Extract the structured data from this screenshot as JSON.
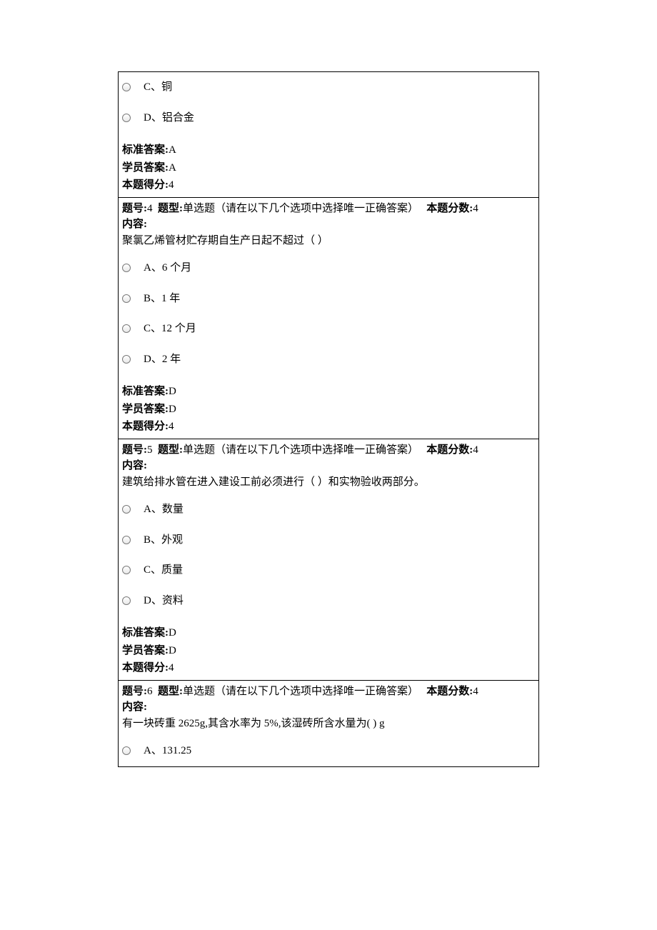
{
  "labels": {
    "question_num": "题号:",
    "question_type": "题型:",
    "type_text": "单选题（请在以下几个选项中选择唯一正确答案）",
    "score_label": "本题分数:",
    "content_label": "内容:",
    "standard_answer": "标准答案:",
    "student_answer": "学员答案:",
    "points_earned": "本题得分:"
  },
  "q3_partial": {
    "options": [
      {
        "key": "C",
        "text": "C、铜"
      },
      {
        "key": "D",
        "text": "D、铝合金"
      }
    ],
    "standard_answer": "A",
    "student_answer": "A",
    "points": "4"
  },
  "q4": {
    "number": "4",
    "score": "4",
    "text": "聚氯乙烯管材贮存期自生产日起不超过（ ）",
    "options": [
      {
        "key": "A",
        "text": "A、6 个月"
      },
      {
        "key": "B",
        "text": "B、1 年"
      },
      {
        "key": "C",
        "text": "C、12 个月"
      },
      {
        "key": "D",
        "text": "D、2 年"
      }
    ],
    "standard_answer": "D",
    "student_answer": "D",
    "points": "4"
  },
  "q5": {
    "number": "5",
    "score": "4",
    "text": "建筑给排水管在进入建设工前必须进行（ ）和实物验收两部分。",
    "options": [
      {
        "key": "A",
        "text": "A、数量"
      },
      {
        "key": "B",
        "text": "B、外观"
      },
      {
        "key": "C",
        "text": "C、质量"
      },
      {
        "key": "D",
        "text": "D、资料"
      }
    ],
    "standard_answer": "D",
    "student_answer": "D",
    "points": "4"
  },
  "q6": {
    "number": "6",
    "score": "4",
    "text": "有一块砖重 2625g,其含水率为 5%,该湿砖所含水量为( ) g",
    "options": [
      {
        "key": "A",
        "text": "A、131.25"
      }
    ]
  }
}
